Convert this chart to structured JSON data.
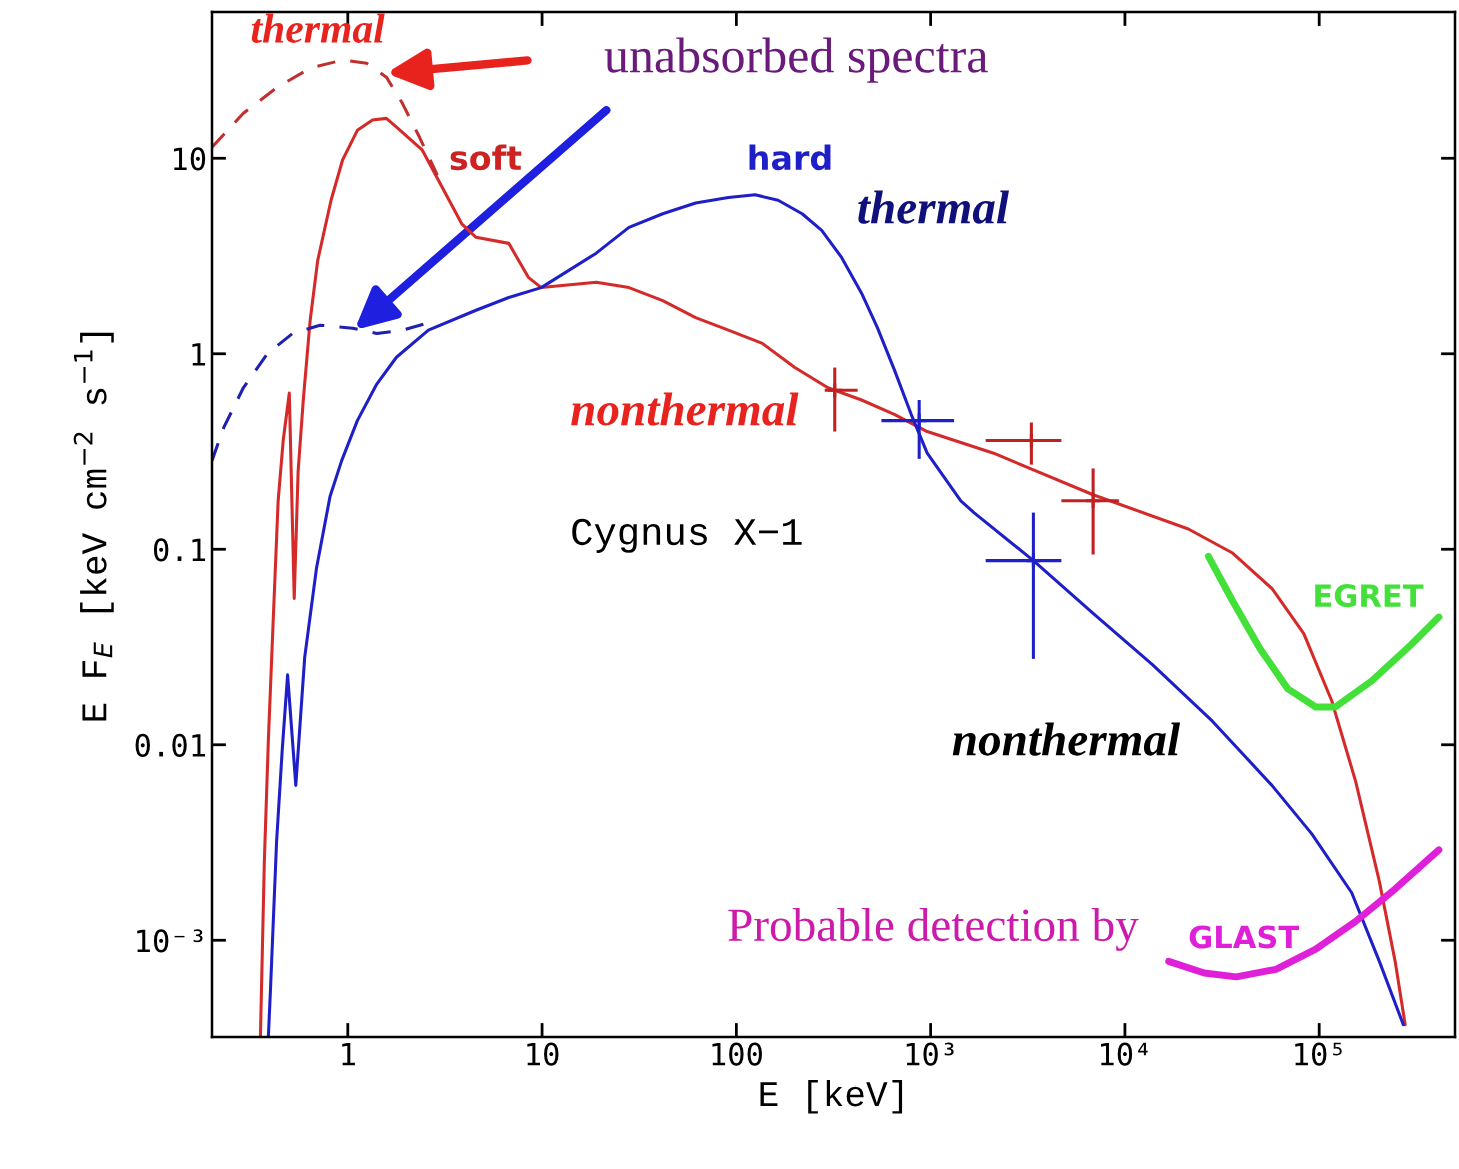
{
  "chart_data": {
    "type": "line",
    "xlabel": "E [keV]",
    "ylabel": "E F$_{E}$ [keV cm$^{−2}$ s$^{−1}$]",
    "log": "xy",
    "xlim": [
      0.2,
      500000
    ],
    "ylim": [
      0.00032,
      56
    ],
    "xticks": [
      1,
      10,
      100,
      {
        "value": 1000,
        "label": "10³"
      },
      {
        "value": 10000,
        "label": "10⁴"
      },
      {
        "value": 100000,
        "label": "10⁵"
      }
    ],
    "yticks": [
      {
        "value": 0.001,
        "label": "10⁻³"
      },
      0.01,
      0.1,
      1,
      10
    ],
    "series": [
      {
        "type": "line",
        "color": "#d42a2a",
        "line_style": "solid",
        "x": [
          0.355,
          0.372,
          0.39,
          0.413,
          0.438,
          0.465,
          0.5,
          0.53,
          0.555,
          0.59,
          0.64,
          0.7,
          0.82,
          0.94,
          1.12,
          1.34,
          1.58,
          1.8,
          2.42,
          3.87,
          4.57,
          6.74,
          8.5,
          9.9,
          19,
          28,
          41.8,
          61.7,
          91,
          136,
          200,
          296,
          441,
          650,
          960,
          2110,
          6860,
          21200,
          35600,
          57100,
          83300,
          116000,
          154000,
          204000,
          246000,
          277000
        ],
        "values": [
          0.00032,
          0.00255,
          0.0105,
          0.043,
          0.177,
          0.36,
          0.63,
          0.056,
          0.25,
          0.58,
          1.48,
          3.0,
          6.1,
          9.8,
          13.9,
          15.7,
          16,
          14.3,
          11,
          4.6,
          3.94,
          3.67,
          2.46,
          2.18,
          2.32,
          2.18,
          1.87,
          1.53,
          1.32,
          1.13,
          0.85,
          0.67,
          0.58,
          0.49,
          0.4,
          0.31,
          0.19,
          0.127,
          0.096,
          0.063,
          0.037,
          0.0168,
          0.0065,
          0.002,
          0.00078,
          0.00037
        ]
      },
      {
        "type": "line",
        "color": "#c03030",
        "line_style": "dashed",
        "x": [
          0.2,
          0.29,
          0.434,
          0.64,
          0.94,
          1.25,
          1.58,
          1.91,
          2.34,
          2.89
        ],
        "values": [
          11.4,
          17,
          23.1,
          28.9,
          31.8,
          30.6,
          26,
          19.1,
          12.8,
          8.2
        ]
      },
      {
        "type": "line",
        "color": "#1f1fc8",
        "line_style": "solid",
        "x": [
          0.39,
          0.4,
          0.43,
          0.46,
          0.49,
          0.54,
          0.6,
          0.69,
          0.81,
          0.93,
          1.12,
          1.41,
          1.78,
          2.6,
          4.57,
          6.74,
          9.9,
          19,
          28,
          41.8,
          61.7,
          91,
          125,
          164,
          218,
          275,
          348,
          441,
          532,
          650,
          794,
          960,
          1430,
          1670,
          3380,
          6860,
          13900,
          28200,
          57100,
          91600,
          147000,
          204000,
          271000
        ],
        "values": [
          0.00032,
          0.00056,
          0.0032,
          0.0095,
          0.0228,
          0.0062,
          0.028,
          0.08,
          0.186,
          0.284,
          0.455,
          0.7,
          0.96,
          1.32,
          1.67,
          1.94,
          2.18,
          3.27,
          4.43,
          5.2,
          5.9,
          6.3,
          6.5,
          6.1,
          5.2,
          4.28,
          3.11,
          2.04,
          1.36,
          0.83,
          0.49,
          0.31,
          0.177,
          0.154,
          0.0875,
          0.047,
          0.0256,
          0.0132,
          0.0062,
          0.0035,
          0.00175,
          0.00078,
          0.00037
        ]
      },
      {
        "type": "line",
        "color": "#2020b0",
        "line_style": "dashed",
        "x": [
          0.2,
          0.23,
          0.29,
          0.385,
          0.52,
          0.72,
          1.06,
          1.41,
          1.91,
          2.54
        ],
        "values": [
          0.284,
          0.42,
          0.67,
          1.0,
          1.27,
          1.4,
          1.35,
          1.27,
          1.32,
          1.43
        ]
      },
      {
        "type": "scatter",
        "color": "#c02020",
        "marker": "cross",
        "x": [
          3300,
          6860,
          321
        ],
        "values": [
          0.36,
          0.177,
          0.65
        ],
        "xerrors": [
          [
            1920,
            4710
          ],
          [
            4710,
            9310
          ],
          [
            285,
            421
          ]
        ],
        "errors": [
          [
            0.271,
            0.445
          ],
          [
            0.094,
            0.259
          ],
          [
            0.4,
            0.85
          ]
        ]
      },
      {
        "type": "scatter",
        "color": "#1f1fc8",
        "marker": "cross",
        "x": [
          3380,
          873
        ],
        "values": [
          0.0875,
          0.455
        ],
        "xerrors": [
          [
            1920,
            4710
          ],
          [
            558,
            1320
          ]
        ],
        "errors": [
          [
            0.0275,
            0.154
          ],
          [
            0.29,
            0.58
          ]
        ]
      },
      {
        "type": "line",
        "color": "#44e03a",
        "line_style": "solid",
        "x": [
          26900,
          35600,
          49600,
          69000,
          96000,
          121000,
          186000,
          297000,
          413000
        ],
        "values": [
          0.092,
          0.055,
          0.031,
          0.0193,
          0.0156,
          0.0156,
          0.0212,
          0.0325,
          0.045
        ]
      },
      {
        "type": "line",
        "color": "#e020d8",
        "line_style": "solid",
        "x": [
          16800,
          25600,
          37400,
          59900,
          96000,
          154000,
          246000,
          413000
        ],
        "values": [
          0.00078,
          0.00068,
          0.00065,
          0.00071,
          0.0009,
          0.00125,
          0.00183,
          0.0029
        ]
      }
    ],
    "annotations": [
      "thermal",
      "unabsorbed spectra",
      "soft",
      "hard",
      "thermal",
      "nonthermal",
      "Cygnus X−1",
      "nonthermal",
      "EGRET",
      "Probable detection by",
      "GLAST"
    ]
  }
}
